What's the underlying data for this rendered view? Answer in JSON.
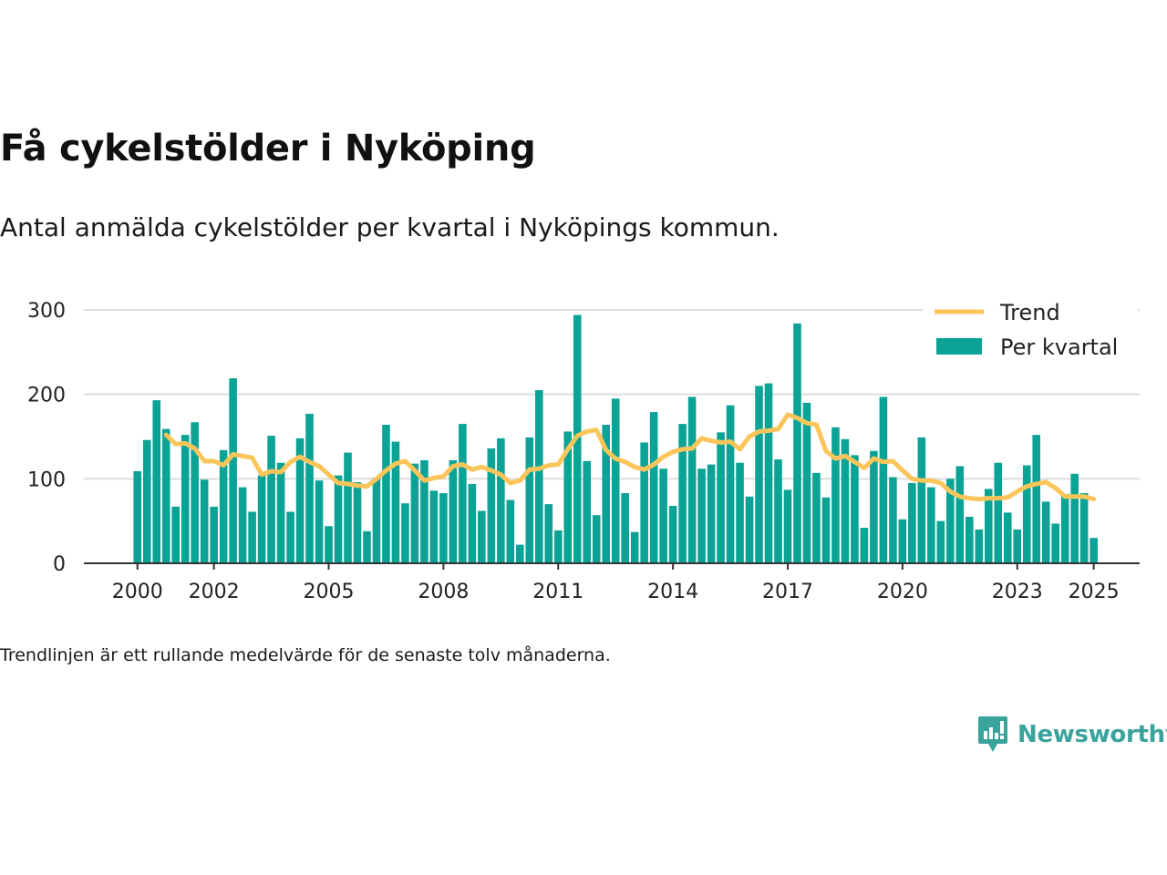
{
  "title": "Få cykelstölder i Nyköping",
  "subtitle": "Antal anmälda cykelstölder per kvartal i Nyköpings kommun.",
  "footnote": "Trendlinjen är ett rullande medelvärde för de senaste tolv månaderna.",
  "logo_text": "Newsworthy",
  "colors": {
    "bar": "#0aa396",
    "trend": "#fbc55a",
    "grid": "#dddddd",
    "axis": "#333333",
    "logo": "#3aa39b"
  },
  "chart_data": {
    "type": "bar",
    "x_start": 2000,
    "x_step": 0.25,
    "xticks": [
      2000,
      2002,
      2005,
      2008,
      2011,
      2014,
      2017,
      2020,
      2023,
      2025
    ],
    "yticks": [
      0,
      100,
      200,
      300
    ],
    "ylim": [
      0,
      300
    ],
    "xlim": [
      1998.6,
      2026.2
    ],
    "legend_position": "top-right",
    "grid": true,
    "series": [
      {
        "name": "Per kvartal",
        "kind": "bar",
        "values": [
          109,
          146,
          193,
          159,
          67,
          152,
          167,
          99,
          67,
          134,
          219,
          90,
          61,
          104,
          151,
          119,
          61,
          148,
          177,
          98,
          44,
          104,
          131,
          96,
          38,
          101,
          164,
          144,
          71,
          118,
          122,
          86,
          83,
          122,
          165,
          94,
          62,
          136,
          148,
          75,
          22,
          149,
          205,
          70,
          39,
          156,
          294,
          121,
          57,
          164,
          195,
          83,
          37,
          143,
          179,
          112,
          68,
          165,
          197,
          112,
          117,
          155,
          187,
          119,
          79,
          210,
          213,
          123,
          87,
          284,
          190,
          107,
          78,
          161,
          147,
          128,
          42,
          133,
          197,
          102,
          52,
          95,
          149,
          90,
          50,
          100,
          115,
          55,
          40,
          88,
          119,
          60,
          40,
          116,
          152,
          73,
          47,
          82,
          106,
          83,
          30
        ]
      },
      {
        "name": "Trend",
        "kind": "line",
        "values": [
          null,
          null,
          null,
          152,
          141,
          142,
          136,
          121,
          121,
          116,
          129,
          127,
          125,
          105,
          109,
          108,
          120,
          126,
          120,
          115,
          105,
          95,
          94,
          92,
          91,
          100,
          110,
          118,
          121,
          110,
          98,
          101,
          103,
          115,
          117,
          111,
          114,
          110,
          105,
          95,
          98,
          111,
          112,
          116,
          117,
          135,
          151,
          156,
          158,
          134,
          124,
          120,
          114,
          111,
          117,
          126,
          132,
          135,
          136,
          148,
          145,
          143,
          144,
          135,
          150,
          156,
          157,
          159,
          176,
          172,
          166,
          164,
          133,
          124,
          127,
          120,
          113,
          124,
          120,
          121,
          110,
          100,
          98,
          98,
          95,
          85,
          79,
          77,
          76,
          77,
          77,
          78,
          85,
          91,
          94,
          96,
          89,
          79,
          79,
          79,
          76
        ]
      }
    ]
  }
}
